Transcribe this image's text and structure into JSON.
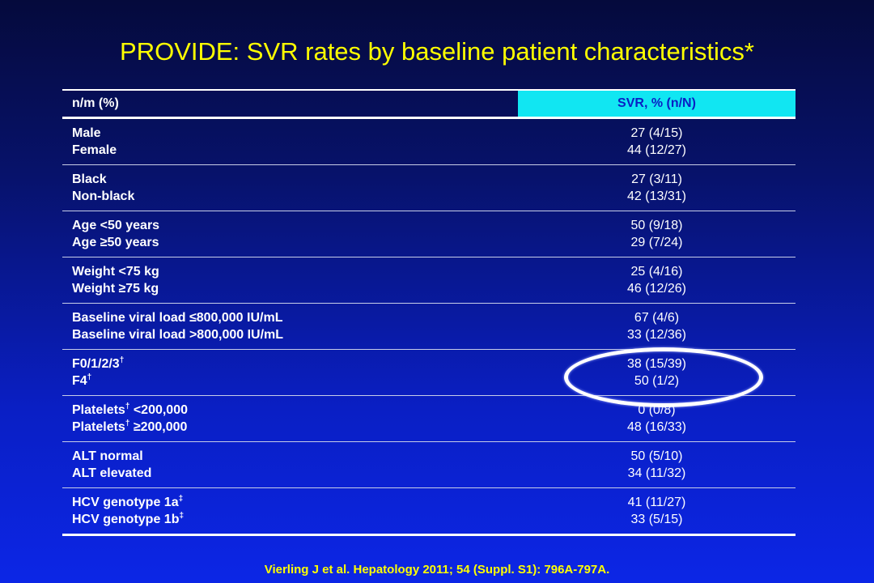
{
  "title": "PROVIDE: SVR rates by baseline patient characteristics*",
  "table": {
    "header": {
      "col1": "n/m (%)",
      "col2": "SVR, % (n/N)"
    },
    "rows": [
      {
        "l1": "Male",
        "l2": "Female",
        "v1": "27 (4/15)",
        "v2": "44 (12/27)"
      },
      {
        "l1": "Black",
        "l2": "Non-black",
        "v1": "27 (3/11)",
        "v2": "42 (13/31)"
      },
      {
        "l1": "Age <50 years",
        "l2": "Age ≥50 years",
        "v1": "50 (9/18)",
        "v2": "29 (7/24)"
      },
      {
        "l1": "Weight <75 kg",
        "l2": "Weight ≥75 kg",
        "v1": "25 (4/16)",
        "v2": "46 (12/26)"
      },
      {
        "l1": "Baseline viral load ≤800,000 IU/mL",
        "l2": "Baseline viral load >800,000 IU/mL",
        "v1": "67 (4/6)",
        "v2": "33 (12/36)"
      },
      {
        "l1": "F0/1/2/3",
        "l1_sup": "†",
        "l2": "F4",
        "l2_sup": "†",
        "v1": "38 (15/39)",
        "v2": "50 (1/2)"
      },
      {
        "l1": "Platelets",
        "l1_sup": "†",
        "l1_tail": " <200,000",
        "l2": "Platelets",
        "l2_sup": "†",
        "l2_tail": " ≥200,000",
        "v1": "0 (0/8)",
        "v2": "48 (16/33)"
      },
      {
        "l1": "ALT normal",
        "l2": "ALT elevated",
        "v1": "50 (5/10)",
        "v2": "34 (11/32)"
      },
      {
        "l1": "HCV genotype 1a",
        "l1_sup": "‡",
        "l2": "HCV genotype 1b",
        "l2_sup": "‡",
        "v1": "41 (11/27)",
        "v2": "33 (5/15)"
      }
    ]
  },
  "footer": "Vierling J et al. Hepatology 2011; 54 (Suppl. S1): 796A-797A."
}
